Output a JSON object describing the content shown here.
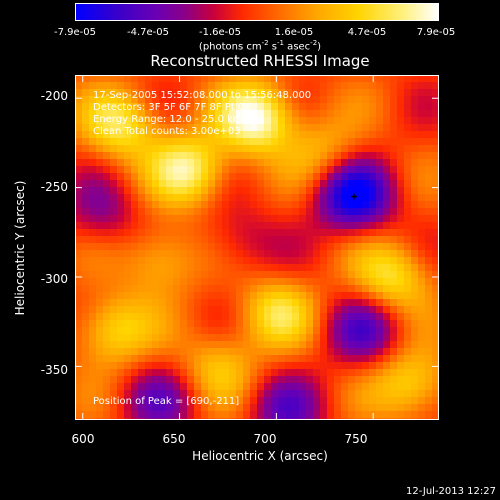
{
  "colorbar": {
    "ticks": [
      "-7.9e-05",
      "-4.7e-05",
      "-1.6e-05",
      "1.6e-05",
      "4.7e-05",
      "7.9e-05"
    ],
    "unit_prefix": "(photons cm",
    "unit_exp1": "-2",
    "unit_mid": " s",
    "unit_exp2": "-1",
    "unit_mid2": " asec",
    "unit_exp3": "-2",
    "unit_suffix": ")"
  },
  "chart_data": {
    "type": "heatmap",
    "title": "Reconstructed RHESSI Image",
    "xlabel": "Heliocentric X (arcsec)",
    "ylabel": "Heliocentric Y (arcsec)",
    "xlim": [
      596,
      784
    ],
    "ylim": [
      -380,
      -187
    ],
    "xticks": [
      600,
      650,
      700,
      750
    ],
    "yticks": [
      -200,
      -250,
      -300,
      -350
    ],
    "zlim": [
      -7.9e-05,
      7.9e-05
    ],
    "info_lines": [
      "17-Sep-2005 15:52:08.000 to 15:56:48.000",
      "Detectors: 3F 5F 6F 7F 8F  Pt 0",
      "Energy Range: 12.0 - 25.0 keV",
      "Clean    Total counts: 3.00e+03"
    ],
    "peak_text": "Position of Peak = [690,-211]",
    "blobs": [
      {
        "x": 740,
        "y": -255,
        "v": -7.9e-05
      },
      {
        "x": 690,
        "y": -211,
        "v": 7.9e-05
      },
      {
        "x": 655,
        "y": -240,
        "v": 6.5e-05
      },
      {
        "x": 620,
        "y": -215,
        "v": 5.5e-05
      },
      {
        "x": 615,
        "y": -330,
        "v": 5e-05
      },
      {
        "x": 700,
        "y": -320,
        "v": 4.8e-05
      },
      {
        "x": 760,
        "y": -300,
        "v": 5.2e-05
      },
      {
        "x": 770,
        "y": -360,
        "v": 5e-05
      },
      {
        "x": 640,
        "y": -290,
        "v": 4e-05
      },
      {
        "x": 670,
        "y": -350,
        "v": 3.5e-05
      },
      {
        "x": 725,
        "y": -230,
        "v": 3e-05
      },
      {
        "x": 745,
        "y": -330,
        "v": -4.5e-05
      },
      {
        "x": 610,
        "y": -265,
        "v": -3e-05
      },
      {
        "x": 680,
        "y": -280,
        "v": -2.5e-05
      },
      {
        "x": 705,
        "y": -375,
        "v": -4e-05
      },
      {
        "x": 640,
        "y": -370,
        "v": -3.5e-05
      }
    ]
  },
  "timestamp": "12-Jul-2013 12:27"
}
